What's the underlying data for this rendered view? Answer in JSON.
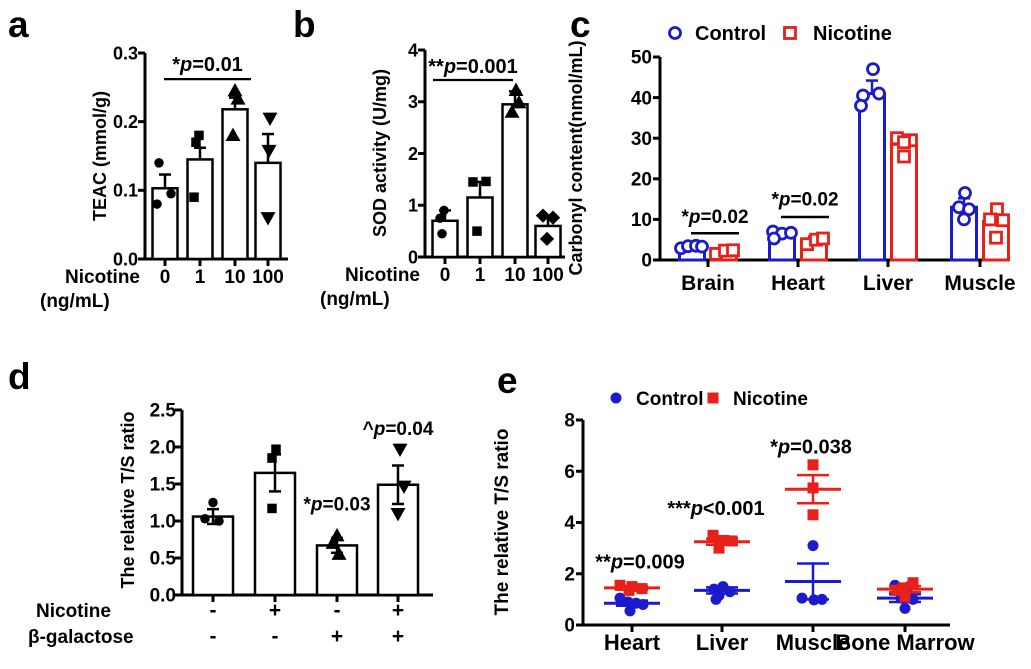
{
  "panel_labels": {
    "a": "a",
    "b": "b",
    "c": "c",
    "d": "d",
    "e": "e"
  },
  "colors": {
    "control_blue": "#1b1acc",
    "nicotine_red": "#e8201a",
    "ink": "#000000"
  },
  "chart_data": [
    {
      "panel": "a",
      "type": "bar",
      "ylabel": "TEAC (mmol/g)",
      "ylim": [
        0,
        0.3
      ],
      "yticks": [
        "0.0",
        "0.1",
        "0.2",
        "0.3"
      ],
      "categories": [
        "0",
        "1",
        "10",
        "100"
      ],
      "xlabel_lines": [
        "Nicotine",
        "(ng/mL)"
      ],
      "err_both": false,
      "bars": [
        {
          "value": 0.103,
          "err": 0.02,
          "marker": "circle",
          "points": [
            [
              0.14,
              -6
            ],
            [
              0.095,
              6
            ],
            [
              0.08,
              -8
            ]
          ]
        },
        {
          "value": 0.145,
          "err": 0.017,
          "marker": "square",
          "points": [
            [
              0.18,
              -1
            ],
            [
              0.17,
              -4
            ],
            [
              0.09,
              -6
            ]
          ]
        },
        {
          "value": 0.218,
          "err": 0.017,
          "marker": "triangle-up",
          "points": [
            [
              0.245,
              0
            ],
            [
              0.233,
              3
            ],
            [
              0.18,
              -2
            ]
          ]
        },
        {
          "value": 0.14,
          "err": 0.042,
          "marker": "triangle-down",
          "points": [
            [
              0.205,
              2
            ],
            [
              0.158,
              1
            ],
            [
              0.06,
              0
            ]
          ]
        }
      ],
      "significance": [
        {
          "label": "*p=0.01",
          "line_y": 0.262,
          "text_y": 0.274
        }
      ]
    },
    {
      "panel": "b",
      "type": "bar",
      "ylabel": "SOD activity (U/mg)",
      "ylim": [
        0,
        4
      ],
      "yticks": [
        "0",
        "1",
        "2",
        "3",
        "4"
      ],
      "categories": [
        "0",
        "1",
        "10",
        "100"
      ],
      "xlabel_lines": [
        "Nicotine",
        "(ng/mL)"
      ],
      "err_both": false,
      "bars": [
        {
          "value": 0.7,
          "err": 0.2,
          "marker": "circle",
          "points": [
            [
              0.9,
              -1
            ],
            [
              0.75,
              -5
            ],
            [
              0.45,
              -3
            ]
          ]
        },
        {
          "value": 1.15,
          "err": 0.3,
          "marker": "square",
          "points": [
            [
              1.45,
              -7
            ],
            [
              1.46,
              6
            ],
            [
              0.5,
              -3
            ]
          ]
        },
        {
          "value": 2.95,
          "err": 0.25,
          "marker": "triangle-up",
          "points": [
            [
              3.22,
              1
            ],
            [
              2.98,
              4
            ],
            [
              2.8,
              -3
            ]
          ]
        },
        {
          "value": 0.6,
          "err": 0.18,
          "marker": "diamond",
          "points": [
            [
              0.8,
              -5
            ],
            [
              0.76,
              5
            ],
            [
              0.35,
              -1
            ]
          ]
        }
      ],
      "significance": [
        {
          "label": "**p=0.001",
          "line_y": 3.42,
          "text_y": 3.56
        }
      ]
    },
    {
      "panel": "c",
      "type": "grouped_bar",
      "ylabel": "Carbonyl content(nmol/mL)",
      "ylim": [
        0,
        50
      ],
      "yticks": [
        "0",
        "10",
        "20",
        "30",
        "40",
        "50"
      ],
      "categories": [
        "Brain",
        "Heart",
        "Liver",
        "Muscle"
      ],
      "legend": [
        {
          "label": "Control",
          "marker": "circle",
          "color": "control_blue"
        },
        {
          "label": "Nicotine",
          "marker": "square",
          "color": "nicotine_red"
        }
      ],
      "series": [
        {
          "name": "Control",
          "color": "control_blue",
          "marker": "circle",
          "values": [
            3,
            6.5,
            41,
            13
          ],
          "errs": [
            0.7,
            0.6,
            3.2,
            2.2
          ],
          "points": [
            [
              [
                2.9,
                -11
              ],
              [
                3.4,
                -4
              ],
              [
                3.5,
                4
              ],
              [
                3.3,
                10
              ]
            ],
            [
              [
                7,
                -9
              ],
              [
                6.5,
                0
              ],
              [
                6.7,
                9
              ],
              [
                5.3,
                -8
              ]
            ],
            [
              [
                47,
                1
              ],
              [
                40.5,
                -9
              ],
              [
                41,
                7
              ],
              [
                38,
                -11
              ]
            ],
            [
              [
                16.5,
                1
              ],
              [
                13,
                -5
              ],
              [
                12.5,
                5
              ],
              [
                10,
                0
              ]
            ]
          ]
        },
        {
          "name": "Nicotine",
          "color": "nicotine_red",
          "marker": "square",
          "values": [
            2,
            5,
            28.5,
            9.5
          ],
          "errs": [
            0.5,
            0.8,
            2,
            2.6
          ],
          "points": [
            [
              [
                1.5,
                -8
              ],
              [
                2.3,
                1
              ],
              [
                2.4,
                9
              ]
            ],
            [
              [
                3.9,
                -7
              ],
              [
                5,
                2
              ],
              [
                5.3,
                9
              ]
            ],
            [
              [
                30,
                -7
              ],
              [
                29.5,
                7
              ],
              [
                29,
                0
              ],
              [
                25.5,
                0
              ]
            ],
            [
              [
                12.5,
                1
              ],
              [
                10,
                -6
              ],
              [
                9.8,
                7
              ],
              [
                5.5,
                0
              ]
            ]
          ]
        }
      ],
      "significance": [
        {
          "label": "*p=0.02",
          "cat": 0,
          "line_y": 6.6,
          "text_y": 9.1
        },
        {
          "label": "*p=0.02",
          "cat": 1,
          "line_y": 10.6,
          "text_y": 13.4
        }
      ]
    },
    {
      "panel": "d",
      "type": "bar",
      "ylabel": "The relative T/S ratio",
      "ylim": [
        0,
        2.5
      ],
      "yticks": [
        "0.0",
        "0.5",
        "1.0",
        "1.5",
        "2.0",
        "2.5"
      ],
      "categories": [
        "",
        "",
        "",
        ""
      ],
      "factor_rows": [
        {
          "name": "Nicotine",
          "values": [
            "-",
            "+",
            "-",
            "+"
          ]
        },
        {
          "name": "β-galactose",
          "values": [
            "-",
            "-",
            "+",
            "+"
          ]
        }
      ],
      "err_both": true,
      "bars": [
        {
          "value": 1.06,
          "err": 0.1,
          "marker": "circle",
          "points": [
            [
              1.25,
              0
            ],
            [
              1.03,
              -8
            ],
            [
              1.0,
              6
            ]
          ]
        },
        {
          "value": 1.65,
          "err": 0.25,
          "marker": "square",
          "points": [
            [
              1.97,
              1
            ],
            [
              1.85,
              -3
            ],
            [
              1.17,
              -3
            ]
          ]
        },
        {
          "value": 0.67,
          "err": 0.1,
          "marker": "triangle-up",
          "points": [
            [
              0.8,
              0
            ],
            [
              0.7,
              -4
            ],
            [
              0.55,
              2
            ]
          ]
        },
        {
          "value": 1.49,
          "err": 0.26,
          "marker": "triangle-down",
          "points": [
            [
              1.97,
              2
            ],
            [
              1.47,
              6
            ],
            [
              1.1,
              0
            ]
          ]
        }
      ],
      "annotations": [
        {
          "label": "*p=0.03",
          "bar": 2,
          "text_y": 1.14
        },
        {
          "label": "^p=0.04",
          "bar": 3,
          "text_y": 2.16
        }
      ]
    },
    {
      "panel": "e",
      "type": "scatter",
      "ylabel": "The relative T/S ratio",
      "ylim": [
        0,
        8
      ],
      "yticks": [
        "0",
        "2",
        "4",
        "6",
        "8"
      ],
      "categories": [
        "Heart",
        "Liver",
        "Muscle",
        "Bone Marrow"
      ],
      "legend": [
        {
          "label": "Control",
          "marker": "circle",
          "color": "control_blue"
        },
        {
          "label": "Nicotine",
          "marker": "square",
          "color": "nicotine_red"
        }
      ],
      "series": [
        {
          "name": "Control",
          "color": "control_blue",
          "marker": "circle",
          "groups": [
            {
              "mean": 0.85,
              "err": 0.1,
              "points": [
                [
                  1.05,
                  -12
                ],
                [
                  0.9,
                  -4
                ],
                [
                  0.85,
                  4
                ],
                [
                  0.8,
                  11
                ],
                [
                  0.55,
                  -2
                ]
              ]
            },
            {
              "mean": 1.35,
              "err": 0.12,
              "points": [
                [
                  1.5,
                  1
                ],
                [
                  1.4,
                  -8
                ],
                [
                  1.3,
                  8
                ],
                [
                  1.15,
                  -3
                ],
                [
                  1.0,
                  -6
                ]
              ]
            },
            {
              "mean": 1.7,
              "err": 0.7,
              "points": [
                [
                  3.1,
                  0
                ],
                [
                  1.05,
                  -11
                ],
                [
                  0.98,
                  1
                ],
                [
                  1.0,
                  9
                ]
              ]
            },
            {
              "mean": 1.05,
              "err": 0.15,
              "points": [
                [
                  1.55,
                  -10
                ],
                [
                  1.5,
                  4
                ],
                [
                  1.05,
                  -4
                ],
                [
                  1.0,
                  8
                ],
                [
                  0.65,
                  0
                ]
              ]
            }
          ]
        },
        {
          "name": "Nicotine",
          "color": "nicotine_red",
          "marker": "square",
          "groups": [
            {
              "mean": 1.45,
              "err": 0.07,
              "points": [
                [
                  1.55,
                  -12
                ],
                [
                  1.5,
                  0
                ],
                [
                  1.42,
                  10
                ],
                [
                  1.35,
                  -3
                ]
              ]
            },
            {
              "mean": 3.25,
              "err": 0.12,
              "points": [
                [
                  3.5,
                  -9
                ],
                [
                  3.3,
                  2
                ],
                [
                  3.28,
                  10
                ],
                [
                  3.0,
                  -3
                ]
              ]
            },
            {
              "mean": 5.3,
              "err": 0.55,
              "points": [
                [
                  6.25,
                  0
                ],
                [
                  5.35,
                  0
                ],
                [
                  4.3,
                  0
                ]
              ]
            },
            {
              "mean": 1.4,
              "err": 0.12,
              "points": [
                [
                  1.65,
                  8
                ],
                [
                  1.45,
                  -2
                ],
                [
                  1.35,
                  -8
                ],
                [
                  1.1,
                  0
                ]
              ]
            }
          ]
        }
      ],
      "significance": [
        {
          "label": "**p=0.009",
          "cat": 0,
          "dx": 8,
          "text_y": 2.2
        },
        {
          "label": "***p<0.001",
          "cat": 1,
          "dx": -6,
          "text_y": 4.3
        },
        {
          "label": "*p=0.038",
          "cat": 2,
          "dx": -2,
          "text_y": 6.7
        }
      ]
    }
  ]
}
